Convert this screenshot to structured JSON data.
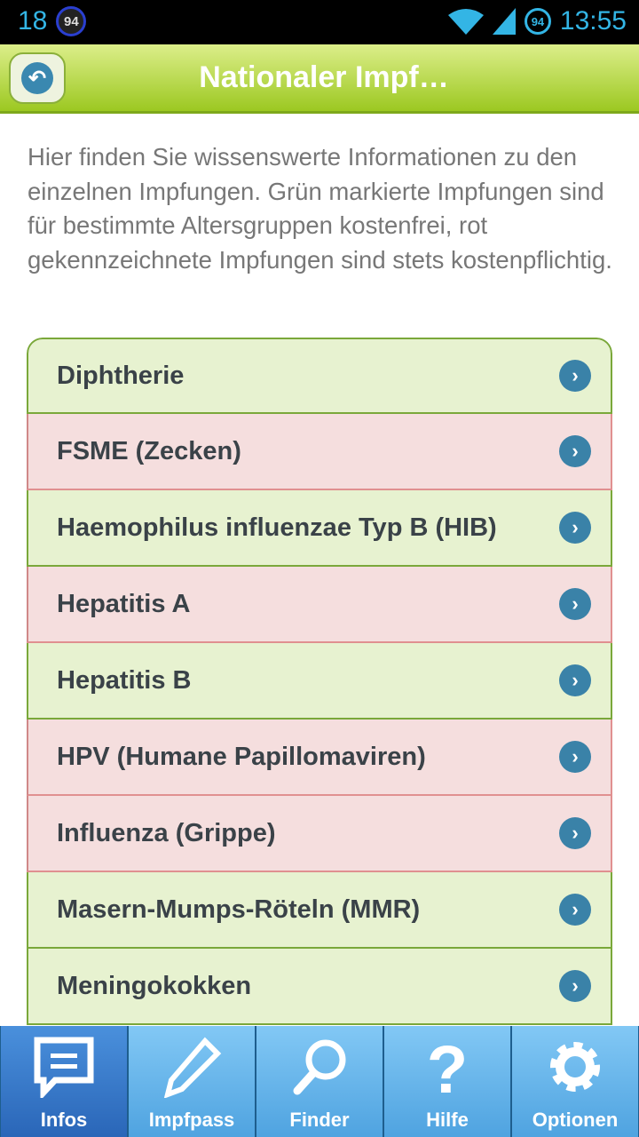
{
  "status_bar": {
    "left_number": "18",
    "notification_badge": "94",
    "battery_percent": "94",
    "time": "13:55"
  },
  "header": {
    "title": "Nationaler Impf…",
    "back_icon": "back-arrow-icon"
  },
  "intro": "Hier finden Sie wissenswerte Informationen zu den einzelnen Impfungen. Grün markierte Impfungen sind für bestimmte Altersgruppen kostenfrei, rot gekennzeichnete Impfungen sind stets kostenpflichtig.",
  "colors": {
    "free": "#e7f2d0",
    "paid": "#f5dede",
    "accent": "#3a82a8"
  },
  "vaccines": [
    {
      "label": "Diphtherie",
      "status": "free"
    },
    {
      "label": "FSME (Zecken)",
      "status": "paid"
    },
    {
      "label": "Haemophilus influenzae Typ B (HIB)",
      "status": "free"
    },
    {
      "label": "Hepatitis A",
      "status": "paid"
    },
    {
      "label": "Hepatitis B",
      "status": "free"
    },
    {
      "label": "HPV (Humane Papillomaviren)",
      "status": "paid"
    },
    {
      "label": "Influenza (Grippe)",
      "status": "paid"
    },
    {
      "label": "Masern-Mumps-Röteln (MMR)",
      "status": "free"
    },
    {
      "label": "Meningokokken",
      "status": "free"
    }
  ],
  "tabs": [
    {
      "label": "Infos",
      "icon": "chat-icon",
      "active": true
    },
    {
      "label": "Impfpass",
      "icon": "pencil-icon"
    },
    {
      "label": "Finder",
      "icon": "search-icon"
    },
    {
      "label": "Hilfe",
      "icon": "help-icon"
    },
    {
      "label": "Optionen",
      "icon": "gear-icon"
    }
  ]
}
